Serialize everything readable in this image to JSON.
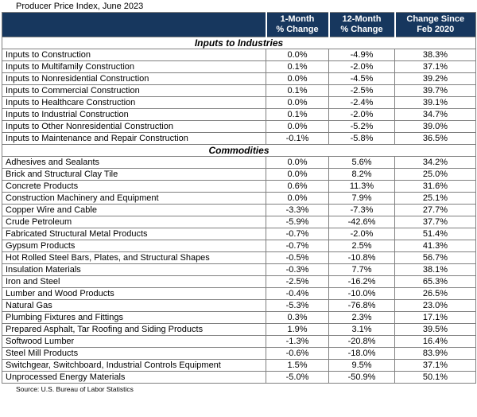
{
  "chart_data": {
    "type": "table",
    "title": "Producer Price Index, June 2023",
    "source": "Source: U.S. Bureau of Labor Statistics",
    "column_headers": [
      {
        "line1": "1-Month",
        "line2": "% Change"
      },
      {
        "line1": "12-Month",
        "line2": "% Change"
      },
      {
        "line1": "Change Since",
        "line2": "Feb 2020"
      }
    ],
    "columns_flat": [
      "1-Month % Change",
      "12-Month % Change",
      "Change Since Feb 2020"
    ],
    "sections": [
      {
        "name": "Inputs to Industries",
        "rows": [
          {
            "label": "Inputs to Construction",
            "one_month": "0.0%",
            "twelve_month": "-4.9%",
            "since_feb_2020": "38.3%"
          },
          {
            "label": "Inputs to Multifamily Construction",
            "one_month": "0.1%",
            "twelve_month": "-2.0%",
            "since_feb_2020": "37.1%"
          },
          {
            "label": "Inputs to Nonresidential Construction",
            "one_month": "0.0%",
            "twelve_month": "-4.5%",
            "since_feb_2020": "39.2%"
          },
          {
            "label": "Inputs to Commercial Construction",
            "one_month": "0.1%",
            "twelve_month": "-2.5%",
            "since_feb_2020": "39.7%"
          },
          {
            "label": "Inputs to Healthcare Construction",
            "one_month": "0.0%",
            "twelve_month": "-2.4%",
            "since_feb_2020": "39.1%"
          },
          {
            "label": "Inputs to Industrial Construction",
            "one_month": "0.1%",
            "twelve_month": "-2.0%",
            "since_feb_2020": "34.7%"
          },
          {
            "label": "Inputs to Other Nonresidential Construction",
            "one_month": "0.0%",
            "twelve_month": "-5.2%",
            "since_feb_2020": "39.0%"
          },
          {
            "label": "Inputs to Maintenance and Repair Construction",
            "one_month": "-0.1%",
            "twelve_month": "-5.8%",
            "since_feb_2020": "36.5%"
          }
        ]
      },
      {
        "name": "Commodities",
        "rows": [
          {
            "label": "Adhesives and Sealants",
            "one_month": "0.0%",
            "twelve_month": "5.6%",
            "since_feb_2020": "34.2%"
          },
          {
            "label": "Brick and Structural Clay Tile",
            "one_month": "0.0%",
            "twelve_month": "8.2%",
            "since_feb_2020": "25.0%"
          },
          {
            "label": "Concrete Products",
            "one_month": "0.6%",
            "twelve_month": "11.3%",
            "since_feb_2020": "31.6%"
          },
          {
            "label": "Construction Machinery and Equipment",
            "one_month": "0.0%",
            "twelve_month": "7.9%",
            "since_feb_2020": "25.1%"
          },
          {
            "label": "Copper Wire and Cable",
            "one_month": "-3.3%",
            "twelve_month": "-7.3%",
            "since_feb_2020": "27.7%"
          },
          {
            "label": "Crude Petroleum",
            "one_month": "-5.9%",
            "twelve_month": "-42.6%",
            "since_feb_2020": "37.7%"
          },
          {
            "label": "Fabricated Structural Metal Products",
            "one_month": "-0.7%",
            "twelve_month": "-2.0%",
            "since_feb_2020": "51.4%"
          },
          {
            "label": "Gypsum Products",
            "one_month": "-0.7%",
            "twelve_month": "2.5%",
            "since_feb_2020": "41.3%"
          },
          {
            "label": "Hot Rolled Steel Bars, Plates, and Structural Shapes",
            "one_month": "-0.5%",
            "twelve_month": "-10.8%",
            "since_feb_2020": "56.7%"
          },
          {
            "label": "Insulation Materials",
            "one_month": "-0.3%",
            "twelve_month": "7.7%",
            "since_feb_2020": "38.1%"
          },
          {
            "label": "Iron and Steel",
            "one_month": "-2.5%",
            "twelve_month": "-16.2%",
            "since_feb_2020": "65.3%"
          },
          {
            "label": "Lumber and Wood Products",
            "one_month": "-0.4%",
            "twelve_month": "-10.0%",
            "since_feb_2020": "26.5%"
          },
          {
            "label": "Natural Gas",
            "one_month": "-5.3%",
            "twelve_month": "-76.8%",
            "since_feb_2020": "23.0%"
          },
          {
            "label": "Plumbing Fixtures and Fittings",
            "one_month": "0.3%",
            "twelve_month": "2.3%",
            "since_feb_2020": "17.1%"
          },
          {
            "label": "Prepared Asphalt, Tar Roofing and Siding Products",
            "one_month": "1.9%",
            "twelve_month": "3.1%",
            "since_feb_2020": "39.5%"
          },
          {
            "label": "Softwood Lumber",
            "one_month": "-1.3%",
            "twelve_month": "-20.8%",
            "since_feb_2020": "16.4%"
          },
          {
            "label": "Steel Mill Products",
            "one_month": "-0.6%",
            "twelve_month": "-18.0%",
            "since_feb_2020": "83.9%"
          },
          {
            "label": "Switchgear, Switchboard, Industrial Controls Equipment",
            "one_month": "1.5%",
            "twelve_month": "9.5%",
            "since_feb_2020": "37.1%"
          },
          {
            "label": "Unprocessed Energy Materials",
            "one_month": "-5.0%",
            "twelve_month": "-50.9%",
            "since_feb_2020": "50.1%"
          }
        ]
      }
    ]
  },
  "colors": {
    "header_bg": "#17375E",
    "header_text": "#FFFFFF",
    "grid": "#808080"
  }
}
